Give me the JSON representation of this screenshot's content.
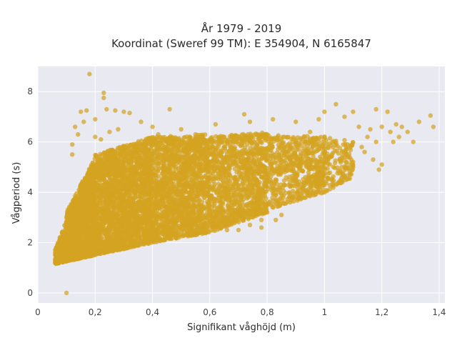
{
  "chart_data": {
    "type": "scatter",
    "title": "År 1979 - 2019",
    "subtitle": "Koordinat (Sweref 99 TM): E 354904, N 6165847",
    "xlabel": "Signifikant våghöjd (m)",
    "ylabel": "Vågperiod (s)",
    "xlim": [
      0,
      1.42
    ],
    "ylim": [
      -0.4,
      9.0
    ],
    "x_ticks": [
      0,
      0.2,
      0.4,
      0.6,
      0.8,
      1.0,
      1.2,
      1.4
    ],
    "x_tick_labels": [
      "0",
      "0,2",
      "0,4",
      "0,6",
      "0,8",
      "1",
      "1,2",
      "1,4"
    ],
    "y_ticks": [
      0,
      2,
      4,
      6,
      8
    ],
    "y_tick_labels": [
      "0",
      "2",
      "4",
      "6",
      "8"
    ],
    "grid": true,
    "colors": {
      "marker": "#d4a421",
      "plot_bg": "#e9e9f2",
      "grid": "#ffffff"
    },
    "series": [
      {
        "name": "",
        "points": [
          [
            0.1,
            0.0
          ],
          [
            0.18,
            8.7
          ],
          [
            0.23,
            7.95
          ],
          [
            0.23,
            7.75
          ],
          [
            0.24,
            7.3
          ],
          [
            0.15,
            7.2
          ],
          [
            0.17,
            7.25
          ],
          [
            0.27,
            7.25
          ],
          [
            0.3,
            7.2
          ],
          [
            0.46,
            7.3
          ],
          [
            0.32,
            7.15
          ],
          [
            0.13,
            6.6
          ],
          [
            0.14,
            6.3
          ],
          [
            0.12,
            5.9
          ],
          [
            0.12,
            5.5
          ],
          [
            0.16,
            6.8
          ],
          [
            0.2,
            6.9
          ],
          [
            0.36,
            6.8
          ],
          [
            0.4,
            6.6
          ],
          [
            0.5,
            6.5
          ],
          [
            0.62,
            6.7
          ],
          [
            0.72,
            7.1
          ],
          [
            0.74,
            6.8
          ],
          [
            0.82,
            6.9
          ],
          [
            0.9,
            6.8
          ],
          [
            0.98,
            6.9
          ],
          [
            1.0,
            7.2
          ],
          [
            1.04,
            7.5
          ],
          [
            1.07,
            7.0
          ],
          [
            1.1,
            7.2
          ],
          [
            1.18,
            7.3
          ],
          [
            1.22,
            7.2
          ],
          [
            1.12,
            6.6
          ],
          [
            1.16,
            6.5
          ],
          [
            1.2,
            6.6
          ],
          [
            1.23,
            6.4
          ],
          [
            1.25,
            6.7
          ],
          [
            1.27,
            6.6
          ],
          [
            1.29,
            6.4
          ],
          [
            1.26,
            6.2
          ],
          [
            1.24,
            6.0
          ],
          [
            1.31,
            6.0
          ],
          [
            1.33,
            6.8
          ],
          [
            1.37,
            7.05
          ],
          [
            1.38,
            6.6
          ],
          [
            1.15,
            6.2
          ],
          [
            1.18,
            6.0
          ],
          [
            1.14,
            5.6
          ],
          [
            1.17,
            5.3
          ],
          [
            1.1,
            5.0
          ],
          [
            1.2,
            5.1
          ],
          [
            1.19,
            4.9
          ],
          [
            1.13,
            5.8
          ],
          [
            1.07,
            5.4
          ],
          [
            1.03,
            4.3
          ],
          [
            1.05,
            4.4
          ],
          [
            1.06,
            5.0
          ],
          [
            0.98,
            4.2
          ],
          [
            1.0,
            4.0
          ],
          [
            0.95,
            3.9
          ],
          [
            0.88,
            3.6
          ],
          [
            0.85,
            3.1
          ],
          [
            0.8,
            3.2
          ],
          [
            0.78,
            2.9
          ],
          [
            0.83,
            2.9
          ],
          [
            0.74,
            2.7
          ],
          [
            0.78,
            2.6
          ],
          [
            0.7,
            2.5
          ],
          [
            0.66,
            2.5
          ],
          [
            0.1,
            3.0
          ],
          [
            0.08,
            2.1
          ],
          [
            0.06,
            1.2
          ],
          [
            0.07,
            1.5
          ],
          [
            0.08,
            1.8
          ],
          [
            0.35,
            5.8
          ],
          [
            0.42,
            6.3
          ],
          [
            0.55,
            6.3
          ],
          [
            0.6,
            6.0
          ],
          [
            0.7,
            6.2
          ],
          [
            0.85,
            6.1
          ],
          [
            0.95,
            6.4
          ],
          [
            0.25,
            6.4
          ],
          [
            0.28,
            6.5
          ],
          [
            0.2,
            6.2
          ],
          [
            0.22,
            6.1
          ]
        ],
        "density_bands": [
          {
            "x_from": 0.06,
            "x_to": 0.1,
            "y_low_from": 1.15,
            "y_low_to": 1.25,
            "y_high_from": 1.7,
            "y_high_to": 2.9,
            "count": 260
          },
          {
            "x_from": 0.1,
            "x_to": 0.2,
            "y_low_from": 1.25,
            "y_low_to": 1.5,
            "y_high_from": 3.2,
            "y_high_to": 5.4,
            "count": 1400
          },
          {
            "x_from": 0.2,
            "x_to": 0.4,
            "y_low_from": 1.5,
            "y_low_to": 2.0,
            "y_high_from": 5.5,
            "y_high_to": 6.2,
            "count": 2200
          },
          {
            "x_from": 0.4,
            "x_to": 0.6,
            "y_low_from": 2.0,
            "y_low_to": 2.4,
            "y_high_from": 6.2,
            "y_high_to": 6.3,
            "count": 1700
          },
          {
            "x_from": 0.6,
            "x_to": 0.8,
            "y_low_from": 2.4,
            "y_low_to": 3.2,
            "y_high_from": 6.2,
            "y_high_to": 6.4,
            "count": 1100
          },
          {
            "x_from": 0.8,
            "x_to": 1.0,
            "y_low_from": 3.3,
            "y_low_to": 4.0,
            "y_high_from": 6.3,
            "y_high_to": 6.2,
            "count": 600
          },
          {
            "x_from": 1.0,
            "x_to": 1.1,
            "y_low_from": 4.0,
            "y_low_to": 4.6,
            "y_high_from": 6.3,
            "y_high_to": 6.0,
            "count": 160
          }
        ]
      }
    ]
  }
}
